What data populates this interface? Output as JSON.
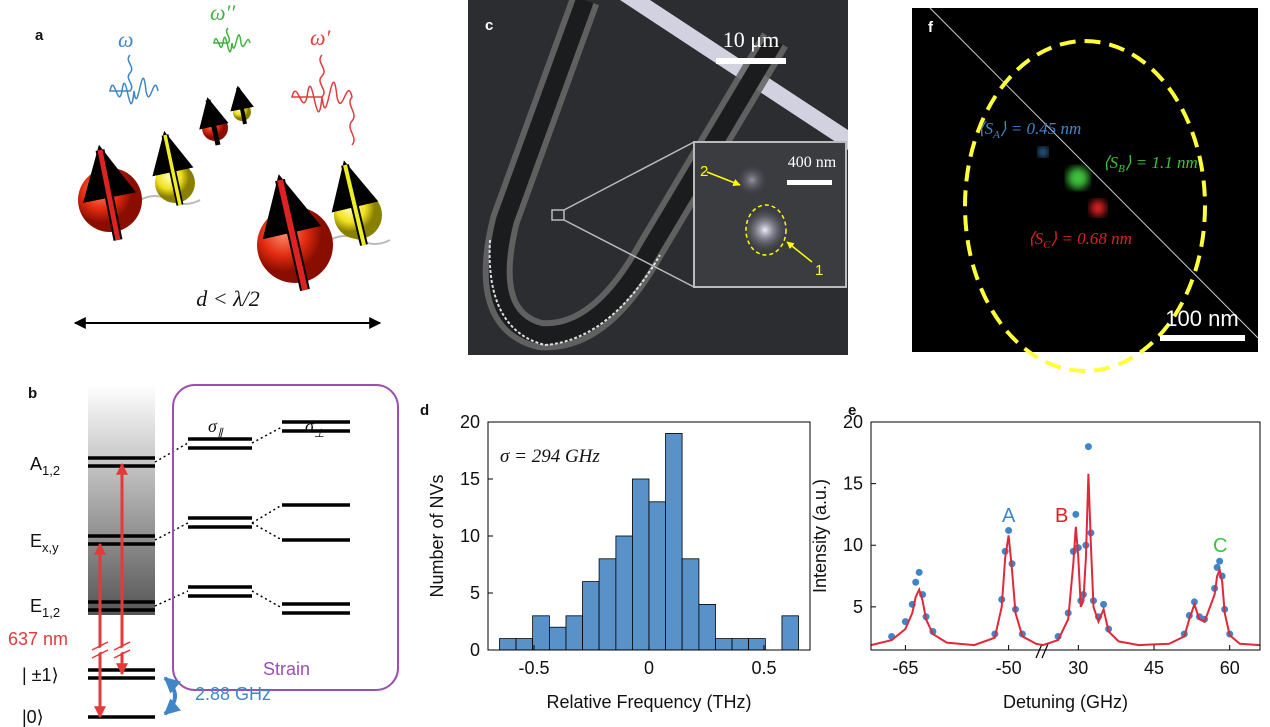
{
  "panels": {
    "a": {
      "label": "a",
      "omega": "ω",
      "omega2": "ω′′",
      "omega1": "ω′",
      "distance": "d < λ/2"
    },
    "b": {
      "label": "b",
      "levels": [
        {
          "main": "A",
          "sub": "1,2"
        },
        {
          "main": "E",
          "sub": "x,y"
        },
        {
          "main": "E",
          "sub": "1,2"
        }
      ],
      "ground_pm": "| ±1⟩",
      "ground_0": "|0⟩",
      "laser": "637 nm",
      "splitting": "2.88 GHz",
      "sigma_par": {
        "main": "σ",
        "sub": "∥"
      },
      "sigma_perp": {
        "main": "σ",
        "sub": "⊥"
      },
      "strain": "Strain"
    },
    "c": {
      "label": "c",
      "scale": "10 μm",
      "inset_scale": "400 nm",
      "marker_2": "2",
      "marker_1": "1"
    },
    "f": {
      "label": "f",
      "scale": "100 nm",
      "sizes": [
        {
          "pre": "⟨S",
          "sub": "A",
          "post": "⟩ = 0.45 nm"
        },
        {
          "pre": "⟨S",
          "sub": "B",
          "post": "⟩ = 1.1 nm"
        },
        {
          "pre": "⟨S",
          "sub": "C",
          "post": "⟩ = 0.68 nm"
        }
      ]
    },
    "d": {
      "label": "d",
      "annotation": "σ = 294 GHz"
    },
    "e": {
      "label": "e",
      "peaks": [
        "A",
        "B",
        "C"
      ]
    }
  },
  "chart_data": [
    {
      "type": "histogram",
      "xlabel": "Relative Frequency (THz)",
      "ylabel": "Number of NVs",
      "color": "#5892c8",
      "bins": [
        -0.65,
        -0.578,
        -0.506,
        -0.433,
        -0.361,
        -0.289,
        -0.217,
        -0.144,
        -0.072,
        0,
        0.072,
        0.144,
        0.217,
        0.289,
        0.361,
        0.433,
        0.506,
        0.578,
        0.65
      ],
      "values": [
        1,
        1,
        3,
        2,
        3,
        6,
        8,
        10,
        15,
        13,
        19,
        8,
        4,
        1,
        1,
        1,
        0,
        3
      ],
      "xlim": [
        -0.7,
        0.7
      ],
      "xticks": [
        -0.5,
        0,
        0.5
      ],
      "ylim": [
        0,
        20
      ],
      "yticks": [
        0,
        5,
        10,
        15,
        20
      ]
    },
    {
      "type": "line",
      "xlabel": "Detuning (GHz)",
      "ylabel": "Intensity (a.u.)",
      "xlim": [
        -70,
        66
      ],
      "xbreak": [
        -45,
        23
      ],
      "xticks": [
        -65,
        -50,
        30,
        45,
        60
      ],
      "ylim": [
        1.5,
        20
      ],
      "yticks": [
        5,
        10,
        15,
        20
      ],
      "x": [
        -70,
        -67,
        -65,
        -64,
        -63.5,
        -63,
        -62.5,
        -62,
        -61,
        -59,
        -55,
        -52,
        -51,
        -50.5,
        -50,
        -49.5,
        -49,
        -48,
        -46,
        -45,
        23,
        26,
        28,
        29,
        29.5,
        30,
        30.5,
        31,
        31.5,
        32,
        32.5,
        33,
        34,
        35,
        36,
        38,
        42,
        48,
        51,
        52,
        53,
        54,
        55,
        57,
        57.5,
        58,
        58.5,
        59,
        60,
        62,
        66
      ],
      "series": [
        {
          "color": "#3f86c9",
          "marker": true,
          "values": [
            null,
            2.6,
            3.8,
            5.2,
            7,
            7.8,
            6,
            4.2,
            3,
            null,
            null,
            2.8,
            5.6,
            9.5,
            11.2,
            8.5,
            4.8,
            2.8,
            null,
            null,
            null,
            2.6,
            4.5,
            9.5,
            12.5,
            9.8,
            5.5,
            6,
            10,
            18,
            11,
            5.5,
            4.2,
            5.2,
            3.2,
            null,
            null,
            null,
            2.8,
            4.3,
            5.4,
            4.2,
            4,
            6.5,
            8.2,
            8.7,
            7.5,
            4.8,
            2.8,
            null,
            null
          ]
        },
        {
          "color": "#e0283a",
          "marker": false,
          "values": [
            1.9,
            2.3,
            3.2,
            4.5,
            5.8,
            6.4,
            5.5,
            4.0,
            2.8,
            2.1,
            1.9,
            2.5,
            5,
            9,
            10.8,
            8,
            4.5,
            2.6,
            2,
            1.9,
            1.9,
            2.3,
            4,
            8.5,
            11.5,
            9,
            5,
            5.5,
            9,
            15.8,
            10,
            5,
            3.8,
            4.8,
            3,
            2.2,
            1.9,
            2,
            2.6,
            4,
            5.2,
            4,
            3.8,
            6,
            7.5,
            8,
            7,
            4.5,
            2.7,
            2,
            1.9
          ]
        }
      ]
    }
  ]
}
